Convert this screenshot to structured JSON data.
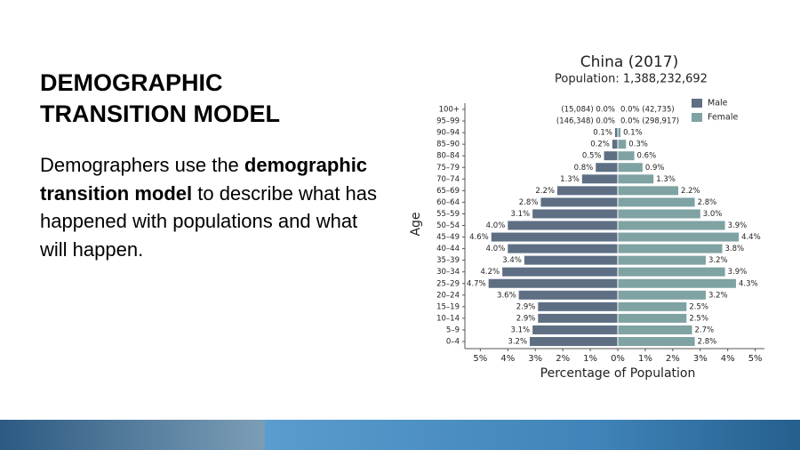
{
  "slide": {
    "title": "DEMOGRAPHIC TRANSITION MODEL",
    "body": [
      "Demographers use the ",
      "demographic transition model",
      " to describe what has happened with populations and what will happen."
    ]
  },
  "chart_data": {
    "type": "population-pyramid",
    "title": "China (2017)",
    "subtitle": "Population: 1,388,232,692",
    "x_label": "Percentage of Population",
    "y_label": "Age",
    "legend": "upper right",
    "categories": [
      "100+",
      "95–99",
      "90–94",
      "85–90",
      "80–84",
      "75–79",
      "70–74",
      "65–69",
      "60–64",
      "55–59",
      "50–54",
      "45–49",
      "40–44",
      "35–39",
      "30–34",
      "25–29",
      "20–24",
      "15–19",
      "10–14",
      "5–9",
      "0–4"
    ],
    "series": [
      {
        "name": "Male",
        "color": "#5e6f84",
        "side": "left",
        "values": [
          0.0,
          0.0,
          0.1,
          0.2,
          0.5,
          0.8,
          1.3,
          2.2,
          2.8,
          3.1,
          4.0,
          4.6,
          4.0,
          3.4,
          4.2,
          4.7,
          3.6,
          2.9,
          2.9,
          3.1,
          3.2
        ],
        "value_labels": [
          "(15,084) 0.0%",
          "(146,348) 0.0%",
          "0.1%",
          "0.2%",
          "0.5%",
          "0.8%",
          "1.3%",
          "2.2%",
          "2.8%",
          "3.1%",
          "4.0%",
          "4.6%",
          "4.0%",
          "3.4%",
          "4.2%",
          "4.7%",
          "3.6%",
          "2.9%",
          "2.9%",
          "3.1%",
          "3.2%"
        ]
      },
      {
        "name": "Female",
        "color": "#7fa2a2",
        "side": "right",
        "values": [
          0.0,
          0.0,
          0.1,
          0.3,
          0.6,
          0.9,
          1.3,
          2.2,
          2.8,
          3.0,
          3.9,
          4.4,
          3.8,
          3.2,
          3.9,
          4.3,
          3.2,
          2.5,
          2.5,
          2.7,
          2.8
        ],
        "value_labels": [
          "0.0% (42,735)",
          "0.0% (298,917)",
          "0.1%",
          "0.3%",
          "0.6%",
          "0.9%",
          "1.3%",
          "2.2%",
          "2.8%",
          "3.0%",
          "3.9%",
          "4.4%",
          "3.8%",
          "3.2%",
          "3.9%",
          "4.3%",
          "3.2%",
          "2.5%",
          "2.5%",
          "2.7%",
          "2.8%"
        ]
      }
    ],
    "xlim": [
      -5.4,
      5.4
    ],
    "xticks": [
      {
        "value": -5,
        "label": "5%"
      },
      {
        "value": -4,
        "label": "4%"
      },
      {
        "value": -3,
        "label": "3%"
      },
      {
        "value": -2,
        "label": "2%"
      },
      {
        "value": -1,
        "label": "1%"
      },
      {
        "value": 0,
        "label": "0%"
      },
      {
        "value": 1,
        "label": "1%"
      },
      {
        "value": 2,
        "label": "2%"
      },
      {
        "value": 3,
        "label": "3%"
      },
      {
        "value": 4,
        "label": "4%"
      },
      {
        "value": 5,
        "label": "5%"
      }
    ]
  }
}
